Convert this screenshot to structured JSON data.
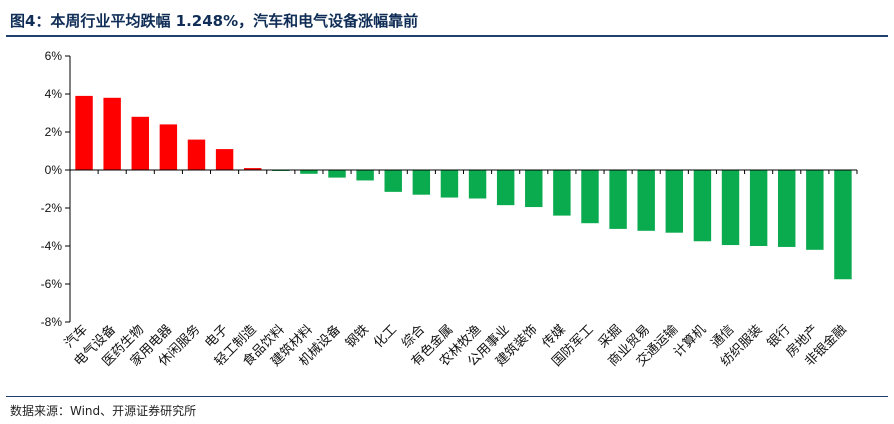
{
  "title": "图4：本周行业平均跌幅 1.248%，汽车和电气设备涨幅靠前",
  "source": "数据来源：Wind、开源证券研究所",
  "colors": {
    "positive": "#ff0000",
    "negative": "#0aaa4e",
    "axis": "#000000",
    "title": "#0f2d56"
  },
  "chart_data": {
    "type": "bar",
    "title": "本周行业平均跌幅 1.248%，汽车和电气设备涨幅靠前",
    "xlabel": "",
    "ylabel": "",
    "ylim": [
      -8,
      6
    ],
    "yticks": [
      6,
      4,
      2,
      0,
      -2,
      -4,
      -6,
      -8
    ],
    "ytick_labels": [
      "6%",
      "4%",
      "2%",
      "0%",
      "-2%",
      "-4%",
      "-6%",
      "-8%"
    ],
    "grid": false,
    "categories": [
      "汽车",
      "电气设备",
      "医药生物",
      "家用电器",
      "休闲服务",
      "电子",
      "轻工制造",
      "食品饮料",
      "建筑材料",
      "机械设备",
      "钢铁",
      "化工",
      "综合",
      "有色金属",
      "农林牧渔",
      "公用事业",
      "建筑装饰",
      "传媒",
      "国防军工",
      "采掘",
      "商业贸易",
      "交通运输",
      "计算机",
      "通信",
      "纺织服装",
      "银行",
      "房地产",
      "非银金融"
    ],
    "values": [
      3.9,
      3.8,
      2.8,
      2.4,
      1.6,
      1.1,
      0.1,
      -0.05,
      -0.2,
      -0.4,
      -0.55,
      -1.15,
      -1.3,
      -1.45,
      -1.5,
      -1.85,
      -1.95,
      -2.4,
      -2.8,
      -3.1,
      -3.2,
      -3.3,
      -3.75,
      -3.95,
      -4.0,
      -4.05,
      -4.2,
      -5.75
    ]
  }
}
